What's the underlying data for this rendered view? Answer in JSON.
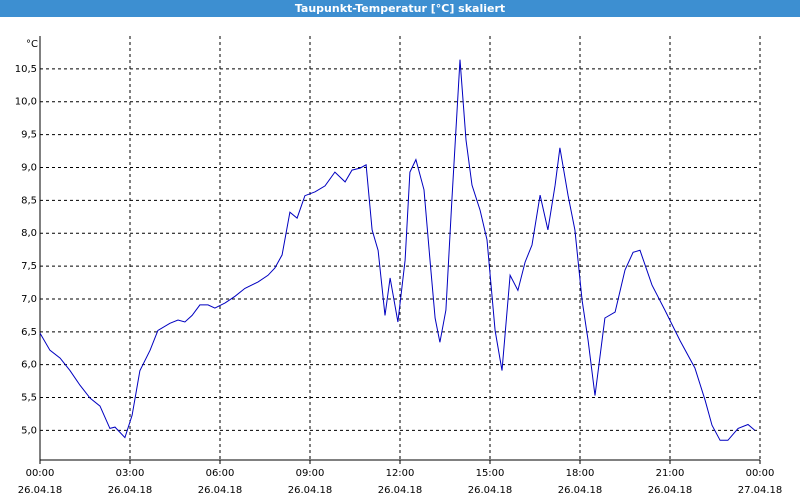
{
  "chart_data": {
    "type": "line",
    "title": "Taupunkt-Temperatur [°C] skaliert",
    "ylabel": "°C",
    "color": "#0000c0",
    "grid": true,
    "xlim": [
      0,
      24
    ],
    "ylim": [
      4.55,
      11.0
    ],
    "xticks": [
      {
        "value": 0,
        "label": "00:00",
        "date": "26.04.18"
      },
      {
        "value": 3,
        "label": "03:00",
        "date": "26.04.18"
      },
      {
        "value": 6,
        "label": "06:00",
        "date": "26.04.18"
      },
      {
        "value": 9,
        "label": "09:00",
        "date": "26.04.18"
      },
      {
        "value": 12,
        "label": "12:00",
        "date": "26.04.18"
      },
      {
        "value": 15,
        "label": "15:00",
        "date": "26.04.18"
      },
      {
        "value": 18,
        "label": "18:00",
        "date": "26.04.18"
      },
      {
        "value": 21,
        "label": "21:00",
        "date": "26.04.18"
      },
      {
        "value": 24,
        "label": "00:00",
        "date": "27.04.18"
      }
    ],
    "yticks": [
      {
        "value": 5.0,
        "label": "5,0"
      },
      {
        "value": 5.5,
        "label": "5,5"
      },
      {
        "value": 6.0,
        "label": "6,0"
      },
      {
        "value": 6.5,
        "label": "6,5"
      },
      {
        "value": 7.0,
        "label": "7,0"
      },
      {
        "value": 7.5,
        "label": "7,5"
      },
      {
        "value": 8.0,
        "label": "8,0"
      },
      {
        "value": 8.5,
        "label": "8,5"
      },
      {
        "value": 9.0,
        "label": "9,0"
      },
      {
        "value": 9.5,
        "label": "9,5"
      },
      {
        "value": 10.0,
        "label": "10,0"
      },
      {
        "value": 10.5,
        "label": "10,5"
      }
    ],
    "x": [
      0,
      0.33,
      0.67,
      1.0,
      1.33,
      1.67,
      2.0,
      2.33,
      2.5,
      2.83,
      3.07,
      3.33,
      3.67,
      3.93,
      4.33,
      4.6,
      4.83,
      5.07,
      5.33,
      5.6,
      5.83,
      6.17,
      6.5,
      6.83,
      7.27,
      7.6,
      7.83,
      8.07,
      8.33,
      8.57,
      8.83,
      9.17,
      9.5,
      9.83,
      10.17,
      10.4,
      10.67,
      10.87,
      11.07,
      11.27,
      11.5,
      11.67,
      11.93,
      12.17,
      12.33,
      12.53,
      12.8,
      13.0,
      13.17,
      13.33,
      13.53,
      13.73,
      14.0,
      14.2,
      14.4,
      14.67,
      14.9,
      15.17,
      15.4,
      15.67,
      15.93,
      16.17,
      16.4,
      16.67,
      16.93,
      17.17,
      17.33,
      17.6,
      17.83,
      18.07,
      18.27,
      18.5,
      18.83,
      19.17,
      19.5,
      19.77,
      20.0,
      20.4,
      20.83,
      21.33,
      21.83,
      22.17,
      22.4,
      22.67,
      22.93,
      23.27,
      23.6,
      23.83
    ],
    "values": [
      6.48,
      6.22,
      6.1,
      5.91,
      5.69,
      5.49,
      5.37,
      5.03,
      5.05,
      4.89,
      5.23,
      5.91,
      6.22,
      6.52,
      6.63,
      6.68,
      6.65,
      6.75,
      6.91,
      6.91,
      6.86,
      6.94,
      7.04,
      7.16,
      7.26,
      7.36,
      7.47,
      7.67,
      8.32,
      8.23,
      8.57,
      8.63,
      8.72,
      8.93,
      8.78,
      8.96,
      8.99,
      9.04,
      8.05,
      7.74,
      6.75,
      7.32,
      6.65,
      7.59,
      8.93,
      9.12,
      8.66,
      7.59,
      6.71,
      6.34,
      6.83,
      8.51,
      10.64,
      9.42,
      8.73,
      8.35,
      7.9,
      6.52,
      5.91,
      7.36,
      7.13,
      7.56,
      7.82,
      8.58,
      8.05,
      8.73,
      9.3,
      8.58,
      8.05,
      6.98,
      6.37,
      5.53,
      6.71,
      6.8,
      7.44,
      7.71,
      7.74,
      7.21,
      6.83,
      6.37,
      5.95,
      5.46,
      5.08,
      4.85,
      4.85,
      5.03,
      5.09,
      5.0
    ]
  }
}
